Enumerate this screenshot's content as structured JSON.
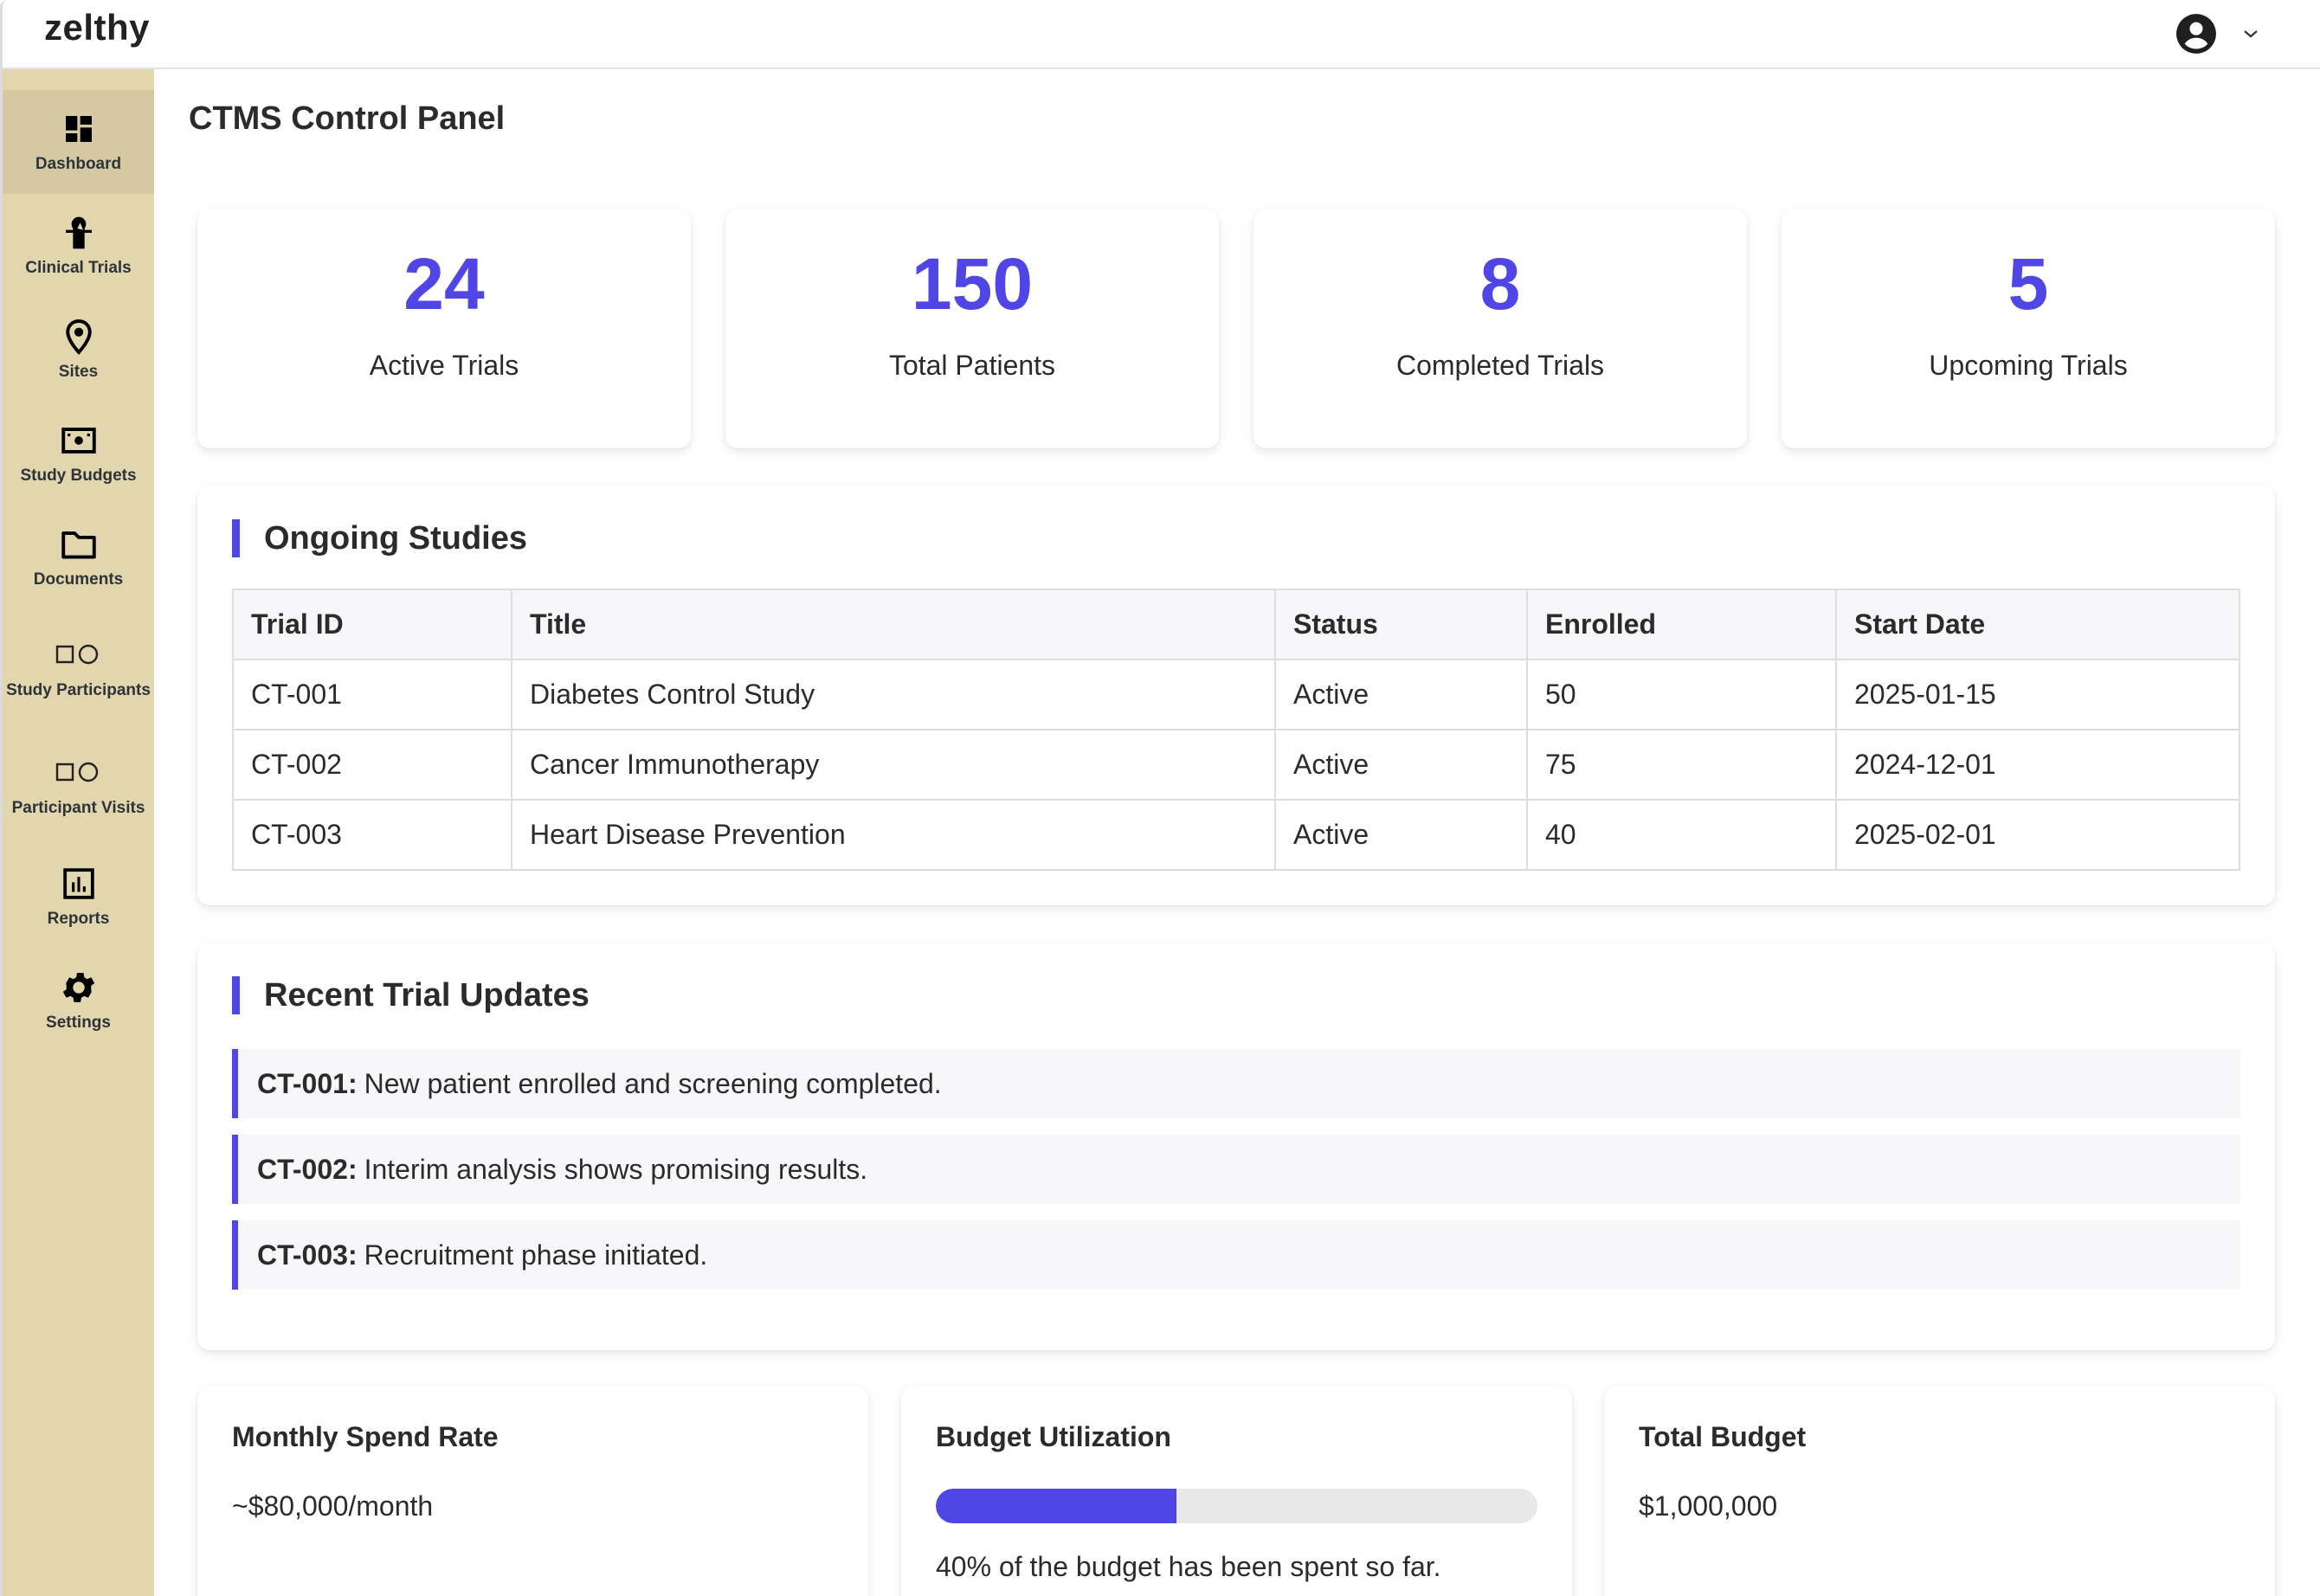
{
  "header": {
    "brand": "zelthy",
    "user_icon": "user-circle-icon",
    "dropdown_icon": "chevron-down-icon"
  },
  "sidebar": {
    "items": [
      {
        "label": "Dashboard",
        "icon": "dashboard-icon",
        "active": true
      },
      {
        "label": "Clinical Trials",
        "icon": "clinical-trial-icon"
      },
      {
        "label": "Sites",
        "icon": "location-pin-icon"
      },
      {
        "label": "Study Budgets",
        "icon": "money-icon"
      },
      {
        "label": "Documents",
        "icon": "folder-icon"
      },
      {
        "label": "Study Participants",
        "icon": "shapes-icon"
      },
      {
        "label": "Participant Visits",
        "icon": "shapes-icon"
      },
      {
        "label": "Reports",
        "icon": "bar-chart-icon"
      },
      {
        "label": "Settings",
        "icon": "gear-icon"
      }
    ]
  },
  "page": {
    "title": "CTMS Control Panel"
  },
  "stats": [
    {
      "value": "24",
      "label": "Active Trials"
    },
    {
      "value": "150",
      "label": "Total Patients"
    },
    {
      "value": "8",
      "label": "Completed Trials"
    },
    {
      "value": "5",
      "label": "Upcoming Trials"
    }
  ],
  "ongoing_studies": {
    "title": "Ongoing Studies",
    "columns": [
      "Trial ID",
      "Title",
      "Status",
      "Enrolled",
      "Start Date"
    ],
    "rows": [
      [
        "CT-001",
        "Diabetes Control Study",
        "Active",
        "50",
        "2025-01-15"
      ],
      [
        "CT-002",
        "Cancer Immunotherapy",
        "Active",
        "75",
        "2024-12-01"
      ],
      [
        "CT-003",
        "Heart Disease Prevention",
        "Active",
        "40",
        "2025-02-01"
      ]
    ]
  },
  "recent_updates": {
    "title": "Recent Trial Updates",
    "items": [
      {
        "id": "CT-001:",
        "text": "New patient enrolled and screening completed."
      },
      {
        "id": "CT-002:",
        "text": "Interim analysis shows promising results."
      },
      {
        "id": "CT-003:",
        "text": "Recruitment phase initiated."
      }
    ]
  },
  "budget": {
    "monthly_spend": {
      "title": "Monthly Spend Rate",
      "value": "~$80,000/month"
    },
    "utilization": {
      "title": "Budget Utilization",
      "percent": 40,
      "note": "40% of the budget has been spent so far."
    },
    "total": {
      "title": "Total Budget",
      "value": "$1,000,000"
    }
  },
  "colors": {
    "accent": "#4f46e5",
    "sidebar_bg": "#e2d6af",
    "sidebar_active": "#d5c9a3",
    "progress_track": "#e8e8e8"
  }
}
